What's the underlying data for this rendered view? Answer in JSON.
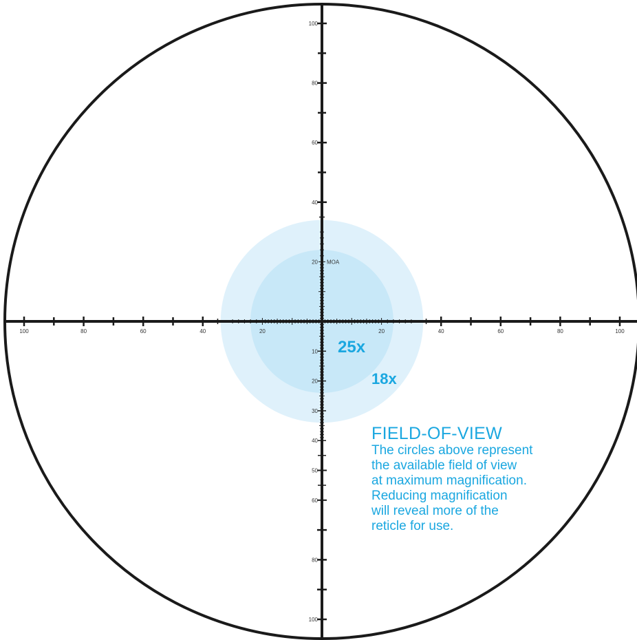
{
  "colors": {
    "reticle": "#1a1a1a",
    "accent": "#1aa7e0",
    "fov_outer": "#dff1fb",
    "fov_inner": "#c8e8f8"
  },
  "reticle": {
    "unit_label": "MOA",
    "horizontal_labels": [
      {
        "value": -100,
        "text": "100"
      },
      {
        "value": -80,
        "text": "80"
      },
      {
        "value": -60,
        "text": "60"
      },
      {
        "value": -40,
        "text": "40"
      },
      {
        "value": -20,
        "text": "20"
      },
      {
        "value": 20,
        "text": "20"
      },
      {
        "value": 40,
        "text": "40"
      },
      {
        "value": 60,
        "text": "60"
      },
      {
        "value": 80,
        "text": "80"
      },
      {
        "value": 100,
        "text": "100"
      }
    ],
    "upper_labels": [
      {
        "value": 100,
        "text": "100"
      },
      {
        "value": 80,
        "text": "80"
      },
      {
        "value": 60,
        "text": "60"
      },
      {
        "value": 40,
        "text": "40"
      },
      {
        "value": 20,
        "text": "20"
      }
    ],
    "lower_labels": [
      {
        "value": 10,
        "text": "10"
      },
      {
        "value": 20,
        "text": "20"
      },
      {
        "value": 30,
        "text": "30"
      },
      {
        "value": 40,
        "text": "40"
      },
      {
        "value": 50,
        "text": "50"
      },
      {
        "value": 60,
        "text": "60"
      },
      {
        "value": 80,
        "text": "80"
      },
      {
        "value": 100,
        "text": "100"
      }
    ]
  },
  "magnifications": [
    {
      "label": "18x",
      "fov_radius_moa": 34
    },
    {
      "label": "25x",
      "fov_radius_moa": 24
    }
  ],
  "field_of_view": {
    "title": "FIELD-OF-VIEW",
    "description": "The circles above represent\nthe available field of view\nat maximum magnification.\nReducing magnification\nwill reveal more of the\nreticle for use."
  }
}
